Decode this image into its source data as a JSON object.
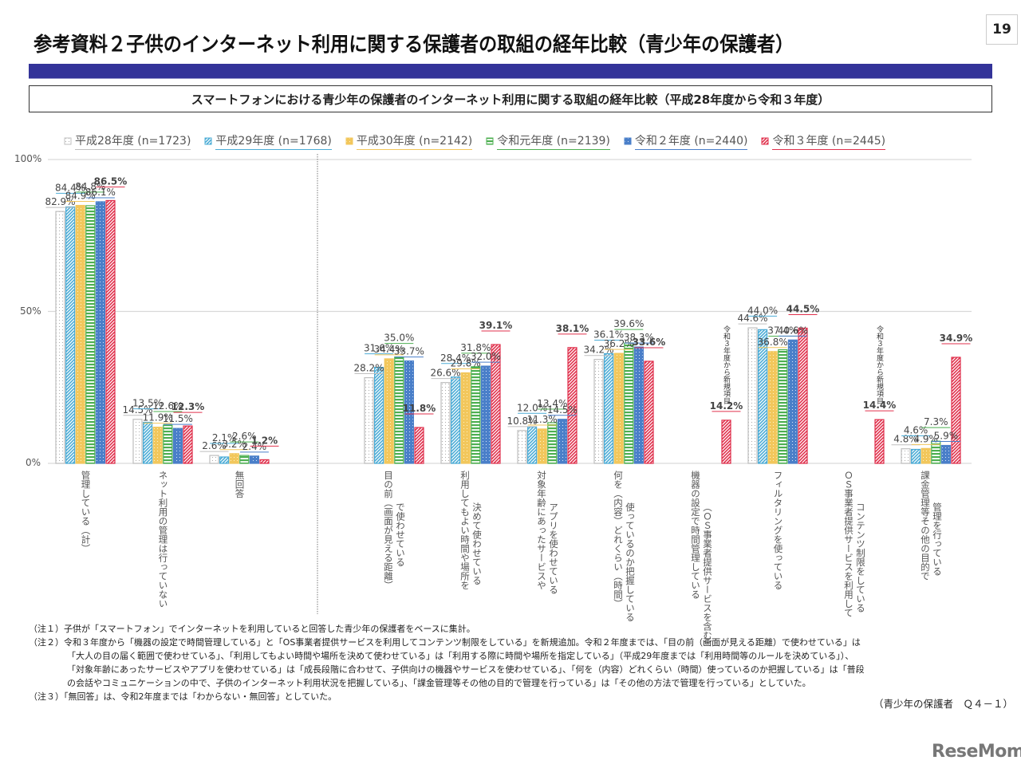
{
  "page_number": "19",
  "title": "参考資料２子供のインターネット利用に関する保護者の取組の経年比較（青少年の保護者）",
  "subtitle": "スマートフォンにおける青少年の保護者のインターネット利用に関する取組の経年比較（平成28年度から令和３年度）",
  "chart_data": {
    "type": "bar",
    "title": "スマートフォンにおける青少年の保護者のインターネット利用に関する取組の経年比較（平成28年度から令和３年度）",
    "xlabel": "",
    "ylabel": "",
    "ylim": [
      0,
      100
    ],
    "yticks": [
      "0%",
      "50%",
      "100%"
    ],
    "grid": true,
    "legend_position": "top",
    "categories": [
      {
        "lines": [
          "管理している（計）"
        ]
      },
      {
        "lines": [
          "ネット利用の管理は行っていない"
        ]
      },
      {
        "lines": [
          "無回答"
        ]
      },
      {
        "lines": [
          "目の前（画面が見える距離）",
          "で使わせている"
        ]
      },
      {
        "lines": [
          "利用してもよい時間や場所を",
          "決めて使わせている"
        ]
      },
      {
        "lines": [
          "対象年齢にあったサービスや",
          "アプリを使わせている"
        ]
      },
      {
        "lines": [
          "何を（内容）どれくらい（時間）",
          "使っているのか把握している"
        ]
      },
      {
        "lines": [
          "機器の設定で時間管理している",
          "（ＯＳ事業者提供サービスを含む）"
        ]
      },
      {
        "lines": [
          "フィルタリングを使っている"
        ]
      },
      {
        "lines": [
          "ＯＳ事業者提供サービスを利用して",
          "コンテンツ制限をしている"
        ]
      },
      {
        "lines": [
          "課金管理等その他の目的で",
          "管理を行っている"
        ]
      }
    ],
    "series": [
      {
        "name": "平成28年度 (n=1723)",
        "color": "#bfbfbf",
        "pattern": "dots-white",
        "values": [
          82.9,
          14.5,
          2.6,
          28.2,
          26.6,
          10.8,
          34.2,
          null,
          44.6,
          null,
          4.8
        ]
      },
      {
        "name": "平成29年度 (n=1768)",
        "color": "#4bacd6",
        "pattern": "diagonal",
        "values": [
          84.4,
          13.5,
          2.1,
          31.6,
          28.4,
          12.0,
          36.1,
          null,
          44.0,
          null,
          4.6
        ]
      },
      {
        "name": "平成30年度 (n=2142)",
        "color": "#f2c75c",
        "pattern": "fine-dots",
        "values": [
          84.9,
          11.9,
          3.2,
          34.4,
          29.8,
          11.3,
          36.2,
          null,
          36.8,
          null,
          4.9
        ]
      },
      {
        "name": "令和元年度 (n=2139)",
        "color": "#4caf50",
        "pattern": "horizontal",
        "values": [
          84.8,
          12.6,
          2.6,
          35.0,
          31.8,
          13.4,
          39.6,
          null,
          37.4,
          null,
          7.3
        ]
      },
      {
        "name": "令和２年度 (n=2440)",
        "color": "#4a7fc9",
        "pattern": "dots-blue",
        "values": [
          86.1,
          11.5,
          2.4,
          33.7,
          32.0,
          14.5,
          38.3,
          null,
          40.6,
          null,
          5.9
        ]
      },
      {
        "name": "令和３年度 (n=2445)",
        "color": "#e0304c",
        "pattern": "diagonal-red",
        "values": [
          86.5,
          12.3,
          1.2,
          11.8,
          39.1,
          38.1,
          33.6,
          14.2,
          44.5,
          14.4,
          34.9
        ],
        "bold_labels": true
      }
    ],
    "annotations": [
      {
        "category_index": 7,
        "text": "令和３年度から新規項目"
      },
      {
        "category_index": 9,
        "text": "令和３年度から新規項目"
      }
    ]
  },
  "notes": [
    {
      "label": "（注１）",
      "lines": [
        "子供が「スマートフォン」でインターネットを利用していると回答した青少年の保護者をベースに集計。"
      ]
    },
    {
      "label": "（注２）",
      "lines": [
        "令和３年度から「機器の設定で時間管理している」と「OS事業者提供サービスを利用してコンテンツ制限をしている」を新規追加。令和２年度までは、「目の前（画面が見える距離）で使わせている」は",
        "「大人の目の届く範囲で使わせている」、「利用してもよい時間や場所を決めて使わせている」は「利用する際に時間や場所を指定している」（平成29年度までは「利用時間等のルールを決めている」）、",
        "「対象年齢にあったサービスやアプリを使わせている」は「成長段階に合わせて、子供向けの機器やサービスを使わせている」、「何を（内容）どれくらい（時間）使っているのか把握している」は「普段",
        "の会話やコミュニケーションの中で、子供のインターネット利用状況を把握している」、「課金管理等その他の目的で管理を行っている」は「その他の方法で管理を行っている」としていた。"
      ]
    },
    {
      "label": "（注３）",
      "lines": [
        "「無回答」は、令和2年度までは「わからない・無回答」としていた。"
      ]
    }
  ],
  "source": "（青少年の保護者　Ｑ４－１）",
  "logo": "ReseMom"
}
